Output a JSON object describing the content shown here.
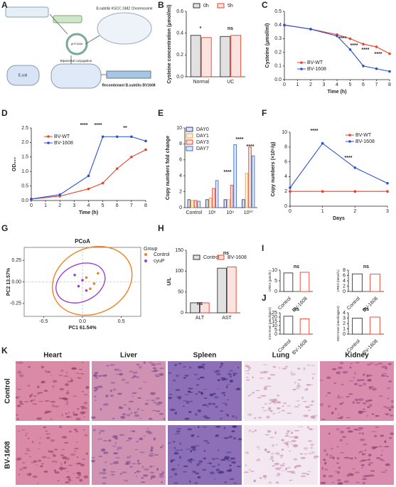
{
  "panel_labels": [
    "A",
    "B",
    "C",
    "D",
    "E",
    "F",
    "G",
    "H",
    "I",
    "J",
    "K"
  ],
  "schematic": {
    "labels": [
      "B.subtilis KSCC 2482 Chromosome",
      "pHT1608",
      "E.coli",
      "Biparental conjugation",
      "Recombinant B.subtilis BV1608"
    ]
  },
  "chart_data": [
    {
      "type": "bar",
      "ylabel": "Cysteine concentration (μmol/ml)",
      "categories": [
        "Normal",
        "UC"
      ],
      "series": [
        {
          "name": "0h",
          "color": "#333333",
          "values": [
            0.38,
            0.37
          ]
        },
        {
          "name": "5h",
          "color": "#e8412c",
          "values": [
            0.36,
            0.38
          ]
        }
      ],
      "ylim": [
        0,
        0.6
      ],
      "yticks": [
        {
          "value": 0,
          "label": "0.0"
        },
        0.2,
        0.4,
        0.6
      ],
      "annotations": [
        "*",
        "ns"
      ]
    },
    {
      "type": "line",
      "ylabel": "Cysteine (μmol/ml)",
      "xlabel": "Time (h)",
      "x": [
        0,
        2,
        4,
        5,
        6,
        7,
        8
      ],
      "series": [
        {
          "name": "BV-WT",
          "color": "#e8412c",
          "values": [
            0.4,
            0.37,
            0.33,
            0.3,
            0.26,
            0.24,
            0.19
          ]
        },
        {
          "name": "BV-1608",
          "color": "#2a4fd6",
          "values": [
            0.4,
            0.37,
            0.32,
            0.22,
            0.1,
            0.08,
            0.06
          ]
        }
      ],
      "xlim": [
        0,
        8
      ],
      "xticks": [
        0,
        1,
        2,
        3,
        4,
        5,
        6,
        7,
        8
      ],
      "ylim": [
        0,
        0.5
      ],
      "yticks": [
        {
          "value": 0,
          "label": "0.0"
        },
        0.1,
        0.2,
        0.3,
        0.4,
        0.5
      ],
      "annotations": [
        "****",
        "****",
        "****",
        "****"
      ]
    },
    {
      "type": "line",
      "ylabel": "OD₆₀₀",
      "xlabel": "Time (h)",
      "x": [
        0,
        2,
        4,
        5,
        6,
        7,
        8
      ],
      "series": [
        {
          "name": "BV-WT",
          "color": "#e8412c",
          "values": [
            0.05,
            0.15,
            0.4,
            0.6,
            1.1,
            1.5,
            1.75
          ]
        },
        {
          "name": "BV-1608",
          "color": "#2a4fd6",
          "values": [
            0.05,
            0.2,
            0.85,
            2.2,
            2.2,
            2.2,
            2.05
          ]
        }
      ],
      "xlim": [
        0,
        8
      ],
      "xticks": [
        0,
        1,
        2,
        3,
        4,
        5,
        6,
        7,
        8
      ],
      "ylim": [
        0,
        2.5
      ],
      "yticks": [
        {
          "value": 0,
          "label": "0.0"
        },
        0.5,
        {
          "value": 1,
          "label": "1.0"
        },
        1.5,
        {
          "value": 2,
          "label": "2.0"
        },
        2.5
      ],
      "annotations": [
        "****",
        "****",
        "**"
      ]
    },
    {
      "type": "bar",
      "ylabel": "Copy numbers fold change",
      "categories": [
        "Control",
        "10⁸",
        "10⁹",
        "10¹⁰"
      ],
      "series": [
        {
          "name": "DAY0",
          "color": "#2d3e8f",
          "values": [
            1.0,
            1.0,
            1.0,
            1.0
          ]
        },
        {
          "name": "DAY1",
          "color": "#f0a040",
          "values": [
            0.9,
            1.2,
            1.0,
            4.3
          ]
        },
        {
          "name": "DAY3",
          "color": "#e8412c",
          "values": [
            0.9,
            2.4,
            2.8,
            7.6
          ]
        },
        {
          "name": "DAY7",
          "color": "#3a6fd8",
          "values": [
            0.8,
            3.4,
            7.9,
            6.5
          ]
        }
      ],
      "ylim": [
        0,
        10
      ],
      "yticks": [
        0,
        2,
        4,
        6,
        8,
        10
      ],
      "annotations": [
        "****",
        "****",
        "****"
      ]
    },
    {
      "type": "line",
      "ylabel": "Copy numbers (×10⁵/g)",
      "xlabel": "Days",
      "x": [
        0,
        1,
        2,
        3
      ],
      "series": [
        {
          "name": "BV-WT",
          "color": "#e8412c",
          "values": [
            2,
            2,
            2,
            2
          ]
        },
        {
          "name": "BV-1608",
          "color": "#2a4fd6",
          "values": [
            2.5,
            8.5,
            5.2,
            3.1
          ]
        }
      ],
      "xlim": [
        0,
        3
      ],
      "xticks": [
        0,
        1,
        2,
        3
      ],
      "ylim": [
        0,
        10
      ],
      "yticks": [
        0,
        2,
        4,
        6,
        8,
        10
      ],
      "annotations": [
        "****",
        "****"
      ]
    },
    {
      "type": "scatter",
      "title": "PCoA",
      "xlabel": "PC1 61.54%",
      "ylabel": "PC2 13.57%",
      "legend_title": "Group",
      "series": [
        {
          "name": "Control",
          "color": "#f08020",
          "x": [
            0.05,
            0.15,
            0.2,
            0.1
          ],
          "y": [
            0.05,
            -0.02,
            0.1,
            -0.08
          ]
        },
        {
          "name": "cyuP",
          "color": "#a040d0",
          "x": [
            -0.05,
            0.0,
            0.05,
            -0.1
          ],
          "y": [
            -0.05,
            0.02,
            -0.1,
            0.08
          ]
        }
      ],
      "xlim": [
        -0.75,
        0.75
      ],
      "xticks": [
        -0.5,
        {
          "value": 0,
          "label": "0.0"
        },
        0.5
      ],
      "ylim": [
        -0.4,
        0.4
      ],
      "yticks": [
        -0.25,
        {
          "value": 0,
          "label": "0.00"
        },
        0.25
      ]
    },
    {
      "type": "bar",
      "ylabel": "U/L",
      "categories": [
        "ALT",
        "AST"
      ],
      "series": [
        {
          "name": "Control",
          "color": "#333333",
          "values": [
            24,
            107
          ]
        },
        {
          "name": "BV-1608",
          "color": "#e8412c",
          "values": [
            24,
            110
          ]
        }
      ],
      "ylim": [
        0,
        150
      ],
      "yticks": [
        0,
        50,
        100,
        150
      ],
      "annotations": [
        "ns",
        "ns"
      ]
    },
    {
      "type": "bar",
      "ylabel": "CREA (μmol/L)",
      "categories": [
        "Control",
        "BV-1608"
      ],
      "values": [
        8.7,
        9.0
      ],
      "colors": [
        "#333333",
        "#e8412c"
      ],
      "ylim": [
        0,
        10
      ],
      "yticks": [
        0,
        5,
        10
      ],
      "annotations": [
        "ns"
      ]
    },
    {
      "type": "bar",
      "ylabel": "UREA (mmol/L)",
      "categories": [
        "Control",
        "BV-1608"
      ],
      "values": [
        6.6,
        6.5
      ],
      "colors": [
        "#333333",
        "#e8412c"
      ],
      "ylim": [
        0,
        8
      ],
      "yticks": [
        0,
        2,
        4,
        6,
        8
      ],
      "annotations": [
        "ns"
      ]
    },
    {
      "type": "bar",
      "ylabel": "GSH level (μmol/gprot)",
      "categories": [
        "Control",
        "BV-1608"
      ],
      "values": [
        21,
        18
      ],
      "colors": [
        "#333333",
        "#e8412c"
      ],
      "ylim": [
        0,
        25
      ],
      "yticks": [
        0,
        5,
        10,
        15,
        20,
        25
      ],
      "annotations": [
        "ns"
      ]
    },
    {
      "type": "bar",
      "ylabel": "MDA level (nmol/mgprot)",
      "categories": [
        "Control",
        "BV-1608"
      ],
      "values": [
        3.0,
        3.2
      ],
      "colors": [
        "#333333",
        "#e8412c"
      ],
      "ylim": [
        0,
        4
      ],
      "yticks": [
        0,
        1,
        2,
        3,
        4
      ],
      "annotations": [
        "ns"
      ]
    }
  ],
  "histology": {
    "columns": [
      "Heart",
      "Liver",
      "Spleen",
      "Lung",
      "Kidney"
    ],
    "rows": [
      "Control",
      "BV-1608"
    ]
  }
}
